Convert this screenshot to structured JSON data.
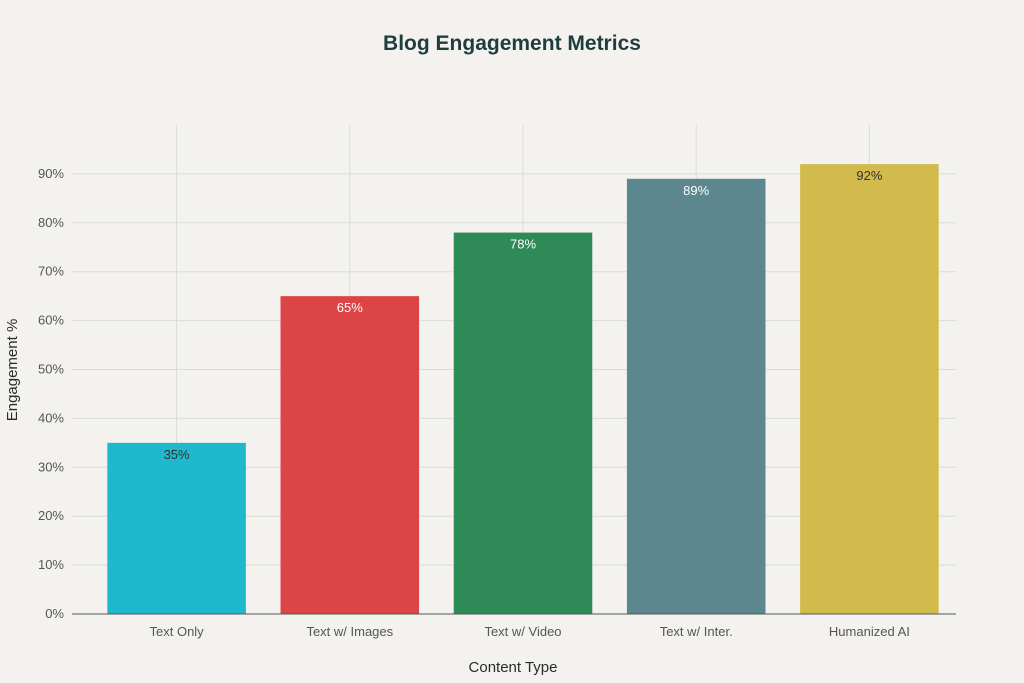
{
  "chart_data": {
    "type": "bar",
    "title": "Blog Engagement Metrics",
    "xlabel": "Content Type",
    "ylabel": "Engagement %",
    "categories": [
      "Text Only",
      "Text w/ Images",
      "Text w/ Video",
      "Text w/ Inter.",
      "Humanized AI"
    ],
    "values": [
      35,
      65,
      78,
      89,
      92
    ],
    "data_labels": [
      "35%",
      "65%",
      "78%",
      "89%",
      "92%"
    ],
    "colors": [
      "#1fb8cd",
      "#db4545",
      "#2e8b57",
      "#5d878f",
      "#d2ba4c"
    ],
    "label_colors": [
      "#333333",
      "#ffffff",
      "#ffffff",
      "#ffffff",
      "#333333"
    ],
    "ylim": [
      0,
      100
    ],
    "yticks": [
      0,
      10,
      20,
      30,
      40,
      50,
      60,
      70,
      80,
      90
    ],
    "ytick_labels": [
      "0%",
      "10%",
      "20%",
      "30%",
      "40%",
      "50%",
      "60%",
      "70%",
      "80%",
      "90%"
    ],
    "grid": true,
    "legend": "none"
  }
}
